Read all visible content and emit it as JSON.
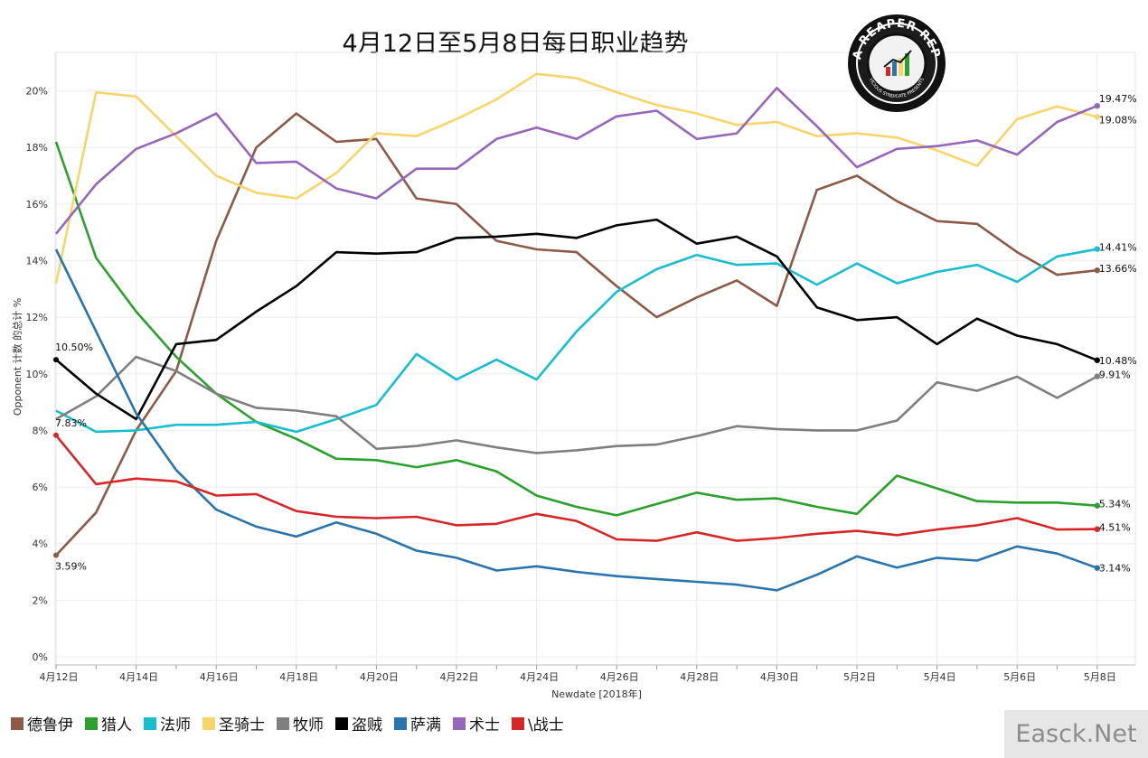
{
  "chart_data": {
    "type": "line",
    "title": "4月12日至5月8日每日职业趋势",
    "xlabel": "Newdate [2018年]",
    "ylabel": "Opponent 计数 的总计 %",
    "ylim": [
      0,
      22
    ],
    "y_ticks": [
      "0%",
      "2%",
      "4%",
      "6%",
      "8%",
      "10%",
      "12%",
      "14%",
      "16%",
      "18%",
      "20%"
    ],
    "x_ticks": [
      "4月12日",
      "4月14日",
      "4月16日",
      "4月18日",
      "4月20日",
      "4月22日",
      "4月24日",
      "4月26日",
      "4月28日",
      "4月30日",
      "5月2日",
      "5月4日",
      "5月6日",
      "5月8日"
    ],
    "x": [
      "4-12",
      "4-13",
      "4-14",
      "4-15",
      "4-16",
      "4-17",
      "4-18",
      "4-19",
      "4-20",
      "4-21",
      "4-22",
      "4-23",
      "4-24",
      "4-25",
      "4-26",
      "4-27",
      "4-28",
      "4-29",
      "4-30",
      "5-1",
      "5-2",
      "5-3",
      "5-4",
      "5-5",
      "5-6",
      "5-7",
      "5-8"
    ],
    "grid": true,
    "legend_position": "bottom-left",
    "series": [
      {
        "name": "德鲁伊",
        "color": "#8c5a46",
        "values": [
          3.59,
          5.1,
          8.0,
          10.1,
          14.7,
          18.0,
          19.2,
          18.2,
          18.3,
          16.2,
          16.0,
          14.7,
          14.4,
          14.3,
          13.1,
          12.0,
          12.7,
          13.3,
          12.4,
          16.5,
          17.0,
          16.1,
          15.4,
          15.3,
          14.3,
          13.5,
          13.66
        ],
        "start_label": "3.59%",
        "end_label": "13.66%"
      },
      {
        "name": "猎人",
        "color": "#2ca02c",
        "values": [
          18.2,
          14.1,
          12.2,
          10.6,
          9.3,
          8.3,
          7.7,
          7.0,
          6.95,
          6.7,
          6.95,
          6.55,
          5.7,
          5.3,
          5.0,
          5.4,
          5.8,
          5.55,
          5.6,
          5.3,
          5.05,
          6.4,
          5.95,
          5.5,
          5.45,
          5.45,
          5.34
        ],
        "start_label": "",
        "end_label": "5.34%"
      },
      {
        "name": "法师",
        "color": "#17becf",
        "values": [
          8.7,
          7.95,
          8.0,
          8.2,
          8.2,
          8.3,
          7.95,
          8.4,
          8.9,
          10.7,
          9.8,
          10.5,
          9.8,
          11.5,
          12.9,
          13.7,
          14.2,
          13.85,
          13.9,
          13.15,
          13.9,
          13.2,
          13.6,
          13.85,
          13.25,
          14.15,
          14.41
        ],
        "start_label": "",
        "end_label": "14.41%"
      },
      {
        "name": "圣骑士",
        "color": "#f7d56b",
        "values": [
          13.2,
          19.95,
          19.8,
          18.4,
          17.0,
          16.4,
          16.2,
          17.1,
          18.5,
          18.4,
          19.0,
          19.7,
          20.6,
          20.45,
          19.95,
          19.5,
          19.2,
          18.8,
          18.9,
          18.4,
          18.5,
          18.35,
          17.9,
          17.35,
          19.0,
          19.45,
          19.08
        ],
        "start_label": "",
        "end_label": "19.08%"
      },
      {
        "name": "牧师",
        "color": "#7f7f7f",
        "values": [
          8.4,
          9.2,
          10.6,
          10.1,
          9.3,
          8.8,
          8.7,
          8.5,
          7.35,
          7.45,
          7.65,
          7.4,
          7.2,
          7.3,
          7.45,
          7.5,
          7.8,
          8.15,
          8.05,
          8.0,
          8.0,
          8.35,
          9.7,
          9.4,
          9.9,
          9.15,
          9.91
        ],
        "start_label": "",
        "end_label": "9.91%"
      },
      {
        "name": "盗贼",
        "color": "#000000",
        "values": [
          10.5,
          9.3,
          8.4,
          11.05,
          11.2,
          12.2,
          13.1,
          14.3,
          14.25,
          14.3,
          14.8,
          14.85,
          14.95,
          14.8,
          15.25,
          15.45,
          14.6,
          14.85,
          14.15,
          12.35,
          11.9,
          12.0,
          11.05,
          11.95,
          11.35,
          11.05,
          10.48
        ],
        "start_label": "10.50%",
        "end_label": "10.48%"
      },
      {
        "name": "萨满",
        "color": "#2a74ad",
        "values": [
          14.4,
          11.5,
          8.6,
          6.6,
          5.2,
          4.6,
          4.25,
          4.75,
          4.35,
          3.75,
          3.5,
          3.05,
          3.2,
          3.0,
          2.85,
          2.75,
          2.65,
          2.55,
          2.35,
          2.9,
          3.55,
          3.15,
          3.5,
          3.4,
          3.9,
          3.65,
          3.14
        ],
        "start_label": "",
        "end_label": "3.14%"
      },
      {
        "name": "术士",
        "color": "#9467bd",
        "values": [
          14.95,
          16.7,
          17.95,
          18.5,
          19.2,
          17.45,
          17.5,
          16.55,
          16.2,
          17.25,
          17.25,
          18.3,
          18.7,
          18.3,
          19.1,
          19.3,
          18.3,
          18.5,
          20.1,
          18.75,
          17.3,
          17.95,
          18.05,
          18.25,
          17.75,
          18.9,
          19.47
        ],
        "start_label": "",
        "end_label": "19.47%"
      },
      {
        "name": "\\战士",
        "color": "#d62728",
        "values": [
          7.83,
          6.1,
          6.3,
          6.2,
          5.7,
          5.75,
          5.15,
          4.95,
          4.9,
          4.95,
          4.65,
          4.7,
          5.05,
          4.8,
          4.15,
          4.1,
          4.4,
          4.1,
          4.2,
          4.35,
          4.45,
          4.3,
          4.5,
          4.65,
          4.9,
          4.5,
          4.51
        ],
        "start_label": "7.83%",
        "end_label": "4.51%"
      }
    ]
  },
  "logo": {
    "text_top": "DATA REAPER REPORT",
    "text_bottom": "VICIOUS SYNDICATE PRESENTS"
  },
  "watermark": {
    "text": "Easck.Net"
  }
}
